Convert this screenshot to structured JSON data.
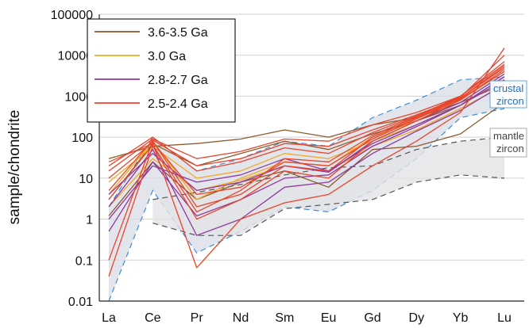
{
  "chart_data": {
    "type": "line",
    "ylabel": "sample/chondrite",
    "xlabel": "",
    "yscale": "log",
    "ylim": [
      0.01,
      100000
    ],
    "yticks": [
      "100000",
      "10000",
      "1000",
      "100",
      "10",
      "1",
      "0.1",
      "0.01"
    ],
    "categories": [
      "La",
      "Ce",
      "Pr",
      "Nd",
      "Sm",
      "Eu",
      "Gd",
      "Dy",
      "Yb",
      "Lu"
    ],
    "grid": "horizontal",
    "legend_position": "top-left",
    "legend": [
      {
        "label": "3.6-3.5 Ga",
        "color": "#8B5A2B"
      },
      {
        "label": "3.0 Ga",
        "color": "#F5A623"
      },
      {
        "label": "2.8-2.7 Ga",
        "color": "#8E3A9E"
      },
      {
        "label": "2.5-2.4 Ga",
        "color": "#E8452C"
      }
    ],
    "fields": [
      {
        "label": "crustal zircon",
        "label_lines": [
          "crustal",
          "zircon"
        ],
        "fill": "#d8dce4",
        "border": "#3b8ed8",
        "upper": [
          2,
          100,
          15,
          30,
          80,
          60,
          300,
          800,
          2500,
          3000
        ],
        "lower": [
          0.01,
          5,
          0.15,
          0.5,
          2,
          1.5,
          5,
          30,
          300,
          500
        ]
      },
      {
        "label": "mantle zircon",
        "label_lines": [
          "mantle",
          "zircon"
        ],
        "fill": "#e3e4e6",
        "border": "#555555",
        "upper": [
          null,
          3,
          4.5,
          7,
          12,
          18,
          20,
          50,
          80,
          100
        ],
        "lower": [
          null,
          0.8,
          0.4,
          0.4,
          1.8,
          2.3,
          3,
          8,
          12,
          10
        ]
      }
    ],
    "series": [
      {
        "group": "3.6-3.5 Ga",
        "color": "#8B5A2B",
        "values": [
          30,
          60,
          70,
          90,
          150,
          100,
          200,
          300,
          700,
          2000
        ]
      },
      {
        "group": "3.6-3.5 Ga",
        "color": "#8B5A2B",
        "values": [
          1.2,
          25,
          3,
          8,
          15,
          6,
          50,
          60,
          120,
          700
        ]
      },
      {
        "group": "3.6-3.5 Ga",
        "color": "#8B5A2B",
        "values": [
          3,
          70,
          20,
          40,
          80,
          50,
          120,
          250,
          600,
          3000
        ]
      },
      {
        "group": "3.0 Ga",
        "color": "#F5A623",
        "values": [
          8,
          60,
          10,
          15,
          40,
          30,
          80,
          200,
          600,
          2500
        ]
      },
      {
        "group": "3.0 Ga",
        "color": "#F5A623",
        "values": [
          2,
          30,
          5,
          9,
          20,
          15,
          60,
          150,
          500,
          1800
        ]
      },
      {
        "group": "3.0 Ga",
        "color": "#F5A623",
        "values": [
          4,
          80,
          3,
          10,
          25,
          20,
          100,
          250,
          800,
          4000
        ]
      },
      {
        "group": "2.8-2.7 Ga",
        "color": "#8E3A9E",
        "values": [
          1,
          20,
          8,
          12,
          30,
          15,
          70,
          200,
          600,
          3000
        ]
      },
      {
        "group": "2.8-2.7 Ga",
        "color": "#8E3A9E",
        "values": [
          0.5,
          25,
          1.2,
          3,
          10,
          12,
          60,
          180,
          600,
          2500
        ]
      },
      {
        "group": "2.8-2.7 Ga",
        "color": "#8E3A9E",
        "values": [
          2,
          50,
          0.4,
          1,
          6,
          8,
          40,
          140,
          450,
          2000
        ]
      },
      {
        "group": "2.8-2.7 Ga",
        "color": "#8E3A9E",
        "values": [
          4,
          40,
          5,
          8,
          20,
          14,
          80,
          250,
          700,
          3500
        ]
      },
      {
        "group": "2.5-2.4 Ga",
        "color": "#E8452C",
        "values": [
          0.1,
          80,
          2,
          4,
          20,
          15,
          100,
          300,
          900,
          5000
        ]
      },
      {
        "group": "2.5-2.4 Ga",
        "color": "#E8452C",
        "values": [
          0.04,
          60,
          1,
          3,
          15,
          10,
          80,
          250,
          800,
          4500
        ]
      },
      {
        "group": "2.5-2.4 Ga",
        "color": "#E8452C",
        "values": [
          15,
          90,
          30,
          45,
          90,
          80,
          200,
          400,
          1000,
          6000
        ]
      },
      {
        "group": "2.5-2.4 Ga",
        "color": "#E8452C",
        "values": [
          5,
          85,
          20,
          30,
          70,
          60,
          150,
          350,
          900,
          5500
        ]
      },
      {
        "group": "2.5-2.4 Ga",
        "color": "#E8452C",
        "values": [
          20,
          100,
          15,
          25,
          55,
          40,
          130,
          330,
          1000,
          7000
        ]
      },
      {
        "group": "2.5-2.4 Ga",
        "color": "#E8452C",
        "values": [
          10,
          75,
          4,
          6,
          25,
          20,
          90,
          280,
          850,
          4000
        ]
      },
      {
        "group": "2.5-2.4 Ga",
        "color": "#E8452C",
        "values": [
          25,
          70,
          0.065,
          1,
          2.5,
          4,
          20,
          80,
          400,
          15000
        ]
      },
      {
        "group": "2.5-2.4 Ga",
        "color": "#E8452C",
        "values": [
          3,
          65,
          1.5,
          5,
          30,
          25,
          110,
          320,
          950,
          10000
        ]
      }
    ]
  }
}
